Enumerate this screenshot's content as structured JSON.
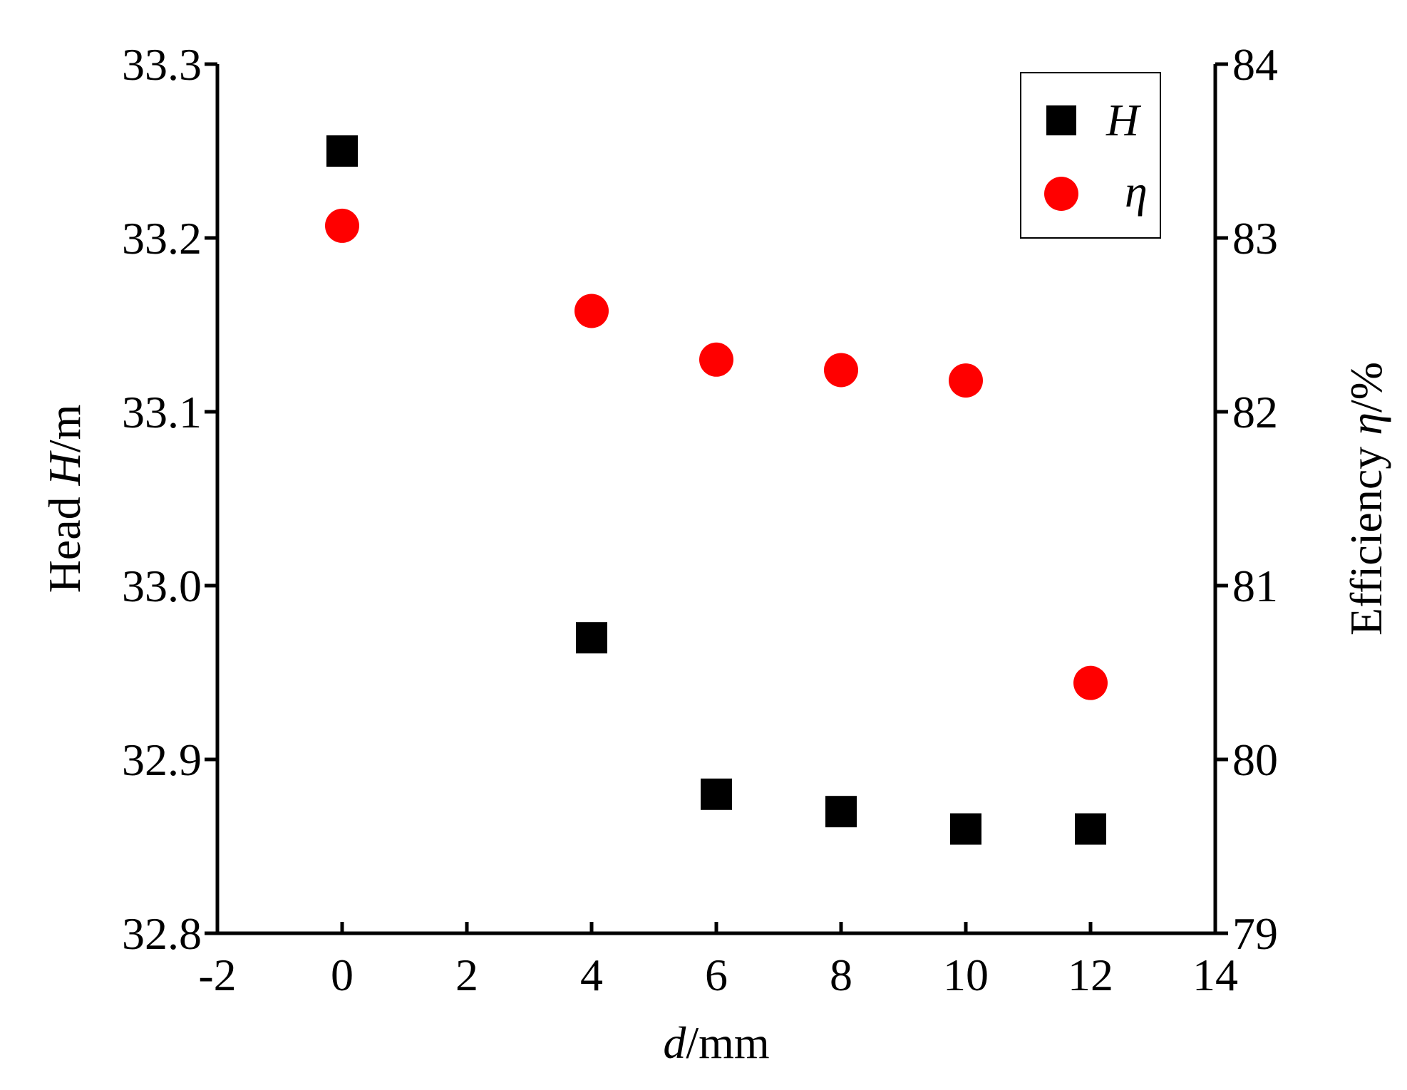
{
  "chart_data": {
    "type": "scatter",
    "x_axis": {
      "label_italic": "d",
      "label_rest": "/mm",
      "ticks": [
        -2,
        0,
        2,
        4,
        6,
        8,
        10,
        12,
        14
      ],
      "range": [
        -2,
        14
      ]
    },
    "y_left": {
      "label_pre": "Head ",
      "label_italic": "H",
      "label_post": "/m",
      "ticks": [
        "32.8",
        "32.9",
        "33.0",
        "33.1",
        "33.2",
        "33.3"
      ],
      "range": [
        32.8,
        33.3
      ]
    },
    "y_right": {
      "label_pre": "Efficiency ",
      "label_italic": "η",
      "label_post": "/%",
      "ticks": [
        "79",
        "80",
        "81",
        "82",
        "83",
        "84"
      ],
      "range": [
        79,
        84
      ]
    },
    "series": [
      {
        "name": "H",
        "axis": "left",
        "marker": "square",
        "color": "#000000",
        "x": [
          0,
          4,
          6,
          8,
          10,
          12
        ],
        "y": [
          33.25,
          32.97,
          32.88,
          32.87,
          32.86,
          32.86
        ]
      },
      {
        "name": "η",
        "axis": "right",
        "marker": "circle",
        "color": "#ff0000",
        "x": [
          0,
          4,
          6,
          8,
          10,
          12
        ],
        "y": [
          83.07,
          82.58,
          82.3,
          82.24,
          82.18,
          80.44
        ]
      }
    ],
    "legend": {
      "placement": "top-right"
    },
    "grid": false
  }
}
